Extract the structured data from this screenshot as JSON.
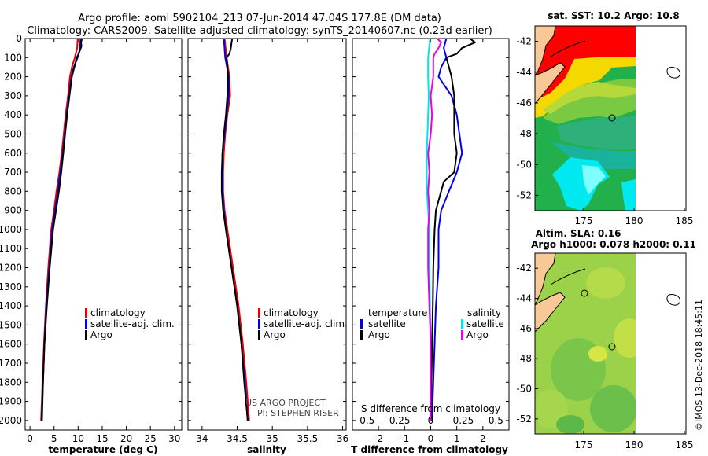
{
  "header": {
    "title_line1": "Argo profile: aoml 5902104_213 07-Jun-2014 47.04S 177.8E (DM data)",
    "title_line2": "Climatology: CARS2009. Satellite-adjusted climatology: synTS_20140607.nc (0.23d earlier)"
  },
  "depth_ticks": [
    "0",
    "100",
    "200",
    "300",
    "400",
    "500",
    "600",
    "700",
    "800",
    "900",
    "1000",
    "1100",
    "1200",
    "1300",
    "1400",
    "1500",
    "1600",
    "1700",
    "1800",
    "1900",
    "2000"
  ],
  "colors": {
    "red": "#e80000",
    "blue": "#0000e8",
    "black": "#000000",
    "cyan": "#00e6e6",
    "magenta": "#e800e8",
    "sst_red": "#ff0000",
    "sst_green": "#22b04c",
    "land": "#f8c896"
  },
  "legend_temp": {
    "items": [
      "climatology",
      "satellite-adj. clim.",
      "Argo"
    ]
  },
  "legend_sal": {
    "items": [
      "climatology",
      "satellite-adj. clim.",
      "Argo"
    ]
  },
  "legend_diff": {
    "left_title": "temperature",
    "right_title": "salinity",
    "left_items": [
      "satellite",
      "Argo"
    ],
    "right_items": [
      "satellite",
      "Argo"
    ]
  },
  "credit": {
    "line1": "US ARGO PROJECT",
    "line2": "PI: STEPHEN RISER"
  },
  "s_diff": {
    "title": "S difference from climatology",
    "ticks": [
      "-0.5",
      "-0.25",
      "0",
      "0.25",
      "0.5"
    ]
  },
  "map_sst": {
    "title": "sat. SST: 10.2 Argo: 10.8",
    "lat_ticks": [
      "-42",
      "-44",
      "-46",
      "-48",
      "-50",
      "-52"
    ],
    "lon_ticks": [
      "175",
      "180",
      "185"
    ]
  },
  "map_sla": {
    "title_line1": "Altim. SLA: 0.16",
    "title_line2": "Argo h1000: 0.078 h2000: 0.11",
    "lat_ticks": [
      "-42",
      "-44",
      "-46",
      "-48",
      "-50",
      "-52"
    ],
    "lon_ticks": [
      "175",
      "180",
      "185"
    ]
  },
  "watermark": "©IMOS 13-Dec-2018 18:45:11",
  "chart_data": [
    {
      "type": "line",
      "xlabel": "temperature (deg C)",
      "xticks": [
        "0",
        "5",
        "10",
        "15",
        "20",
        "25",
        "30"
      ],
      "xlim": [
        -1,
        31.5
      ],
      "ylim": [
        2050,
        0
      ],
      "series": [
        {
          "name": "climatology",
          "color": "red",
          "depth": [
            0,
            50,
            100,
            150,
            200,
            300,
            400,
            500,
            600,
            700,
            800,
            900,
            1000,
            1200,
            1400,
            1600,
            1800,
            2000
          ],
          "values": [
            9.9,
            9.8,
            9.3,
            8.7,
            8.3,
            7.9,
            7.4,
            7.0,
            6.6,
            6.1,
            5.5,
            5.0,
            4.4,
            3.8,
            3.3,
            2.9,
            2.6,
            2.3
          ]
        },
        {
          "name": "satellite-adj. clim.",
          "color": "blue",
          "depth": [
            0,
            50,
            100,
            150,
            200,
            300,
            400,
            500,
            600,
            700,
            800,
            900,
            1000,
            1200,
            1400,
            1600,
            1800,
            2000
          ],
          "values": [
            10.5,
            10.4,
            9.9,
            9.1,
            8.6,
            8.1,
            7.6,
            7.2,
            6.8,
            6.3,
            5.8,
            5.2,
            4.6,
            4.0,
            3.4,
            3.0,
            2.7,
            2.4
          ]
        },
        {
          "name": "Argo",
          "color": "black",
          "depth": [
            0,
            20,
            40,
            60,
            80,
            100,
            150,
            200,
            300,
            400,
            500,
            600,
            700,
            800,
            900,
            1000,
            1200,
            1400,
            1600,
            1800,
            2000
          ],
          "values": [
            10.8,
            10.6,
            10.7,
            10.4,
            10.1,
            9.7,
            9.2,
            8.7,
            8.2,
            7.7,
            7.3,
            6.9,
            6.5,
            6.0,
            5.4,
            4.8,
            4.1,
            3.5,
            3.0,
            2.7,
            2.5
          ]
        }
      ]
    },
    {
      "type": "line",
      "xlabel": "salinity",
      "xticks": [
        "34",
        "34.5",
        "35",
        "35.5",
        "36"
      ],
      "xlim": [
        33.8,
        36.05
      ],
      "ylim": [
        2050,
        0
      ],
      "series": [
        {
          "name": "climatology",
          "color": "red",
          "depth": [
            0,
            100,
            200,
            300,
            400,
            500,
            600,
            700,
            800,
            900,
            1000,
            1200,
            1400,
            1600,
            1800,
            2000
          ],
          "values": [
            34.32,
            34.35,
            34.39,
            34.4,
            34.36,
            34.33,
            34.31,
            34.3,
            34.3,
            34.32,
            34.36,
            34.44,
            34.52,
            34.58,
            34.63,
            34.67
          ]
        },
        {
          "name": "satellite-adj. clim.",
          "color": "blue",
          "depth": [
            0,
            100,
            200,
            300,
            400,
            500,
            600,
            700,
            800,
            900,
            1000,
            1200,
            1400,
            1600,
            1800,
            2000
          ],
          "values": [
            34.31,
            34.33,
            34.38,
            34.38,
            34.35,
            34.32,
            34.29,
            34.29,
            34.29,
            34.31,
            34.34,
            34.42,
            34.5,
            34.56,
            34.61,
            34.65
          ]
        },
        {
          "name": "Argo",
          "color": "black",
          "depth": [
            0,
            20,
            50,
            80,
            100,
            150,
            200,
            300,
            400,
            500,
            600,
            700,
            800,
            900,
            1000,
            1200,
            1400,
            1600,
            1800,
            2000
          ],
          "values": [
            34.43,
            34.42,
            34.41,
            34.39,
            34.35,
            34.36,
            34.37,
            34.36,
            34.34,
            34.31,
            34.29,
            34.28,
            34.28,
            34.3,
            34.34,
            34.42,
            34.5,
            34.56,
            34.6,
            34.65
          ]
        }
      ]
    },
    {
      "type": "line",
      "xlabel": "T difference from climatology",
      "xticks": [
        "-2",
        "-1",
        "0",
        "1",
        "2"
      ],
      "xlim": [
        -3.0,
        3.0
      ],
      "ylim": [
        2050,
        0
      ],
      "series": [
        {
          "name": "satellite",
          "color": "blue",
          "depth": [
            0,
            50,
            100,
            150,
            200,
            300,
            400,
            500,
            600,
            700,
            800,
            900,
            1000,
            1200,
            1400,
            1600,
            1800,
            2000
          ],
          "values": [
            0.6,
            0.5,
            0.6,
            0.4,
            0.3,
            0.8,
            1.0,
            1.1,
            1.2,
            1.0,
            0.7,
            0.4,
            0.3,
            0.3,
            0.2,
            0.15,
            0.1,
            0.05
          ]
        },
        {
          "name": "Argo",
          "color": "black",
          "depth": [
            0,
            20,
            50,
            80,
            100,
            150,
            200,
            300,
            400,
            500,
            600,
            700,
            750,
            800,
            900,
            1000,
            1200,
            1400,
            1600,
            1800,
            2000
          ],
          "values": [
            1.5,
            1.7,
            1.2,
            1.0,
            0.6,
            0.7,
            0.8,
            0.9,
            0.9,
            0.9,
            1.0,
            0.9,
            0.5,
            0.4,
            0.2,
            0.15,
            0.1,
            0.08,
            0.05,
            0.03,
            0.02
          ]
        },
        {
          "name": "satellite (salinity)",
          "color": "cyan",
          "depth": [
            0,
            100,
            200,
            300,
            400,
            500,
            600,
            700,
            800,
            900,
            1000,
            1200,
            1400,
            1600,
            1800,
            2000
          ],
          "values": [
            -0.005,
            -0.02,
            -0.02,
            -0.015,
            -0.02,
            -0.025,
            -0.03,
            -0.03,
            -0.03,
            -0.02,
            -0.01,
            -0.01,
            -0.005,
            0,
            0,
            0
          ]
        },
        {
          "name": "Argo (salinity)",
          "color": "magenta",
          "depth": [
            0,
            20,
            50,
            80,
            100,
            200,
            300,
            400,
            500,
            600,
            700,
            800,
            900,
            1000,
            1200,
            1400,
            1600,
            1800,
            2000
          ],
          "values": [
            0.05,
            0.08,
            0.06,
            0.03,
            0.02,
            0.02,
            0.0,
            0.01,
            0.0,
            -0.02,
            -0.01,
            -0.02,
            -0.01,
            -0.02,
            -0.02,
            -0.01,
            0,
            0,
            0
          ]
        }
      ]
    }
  ]
}
